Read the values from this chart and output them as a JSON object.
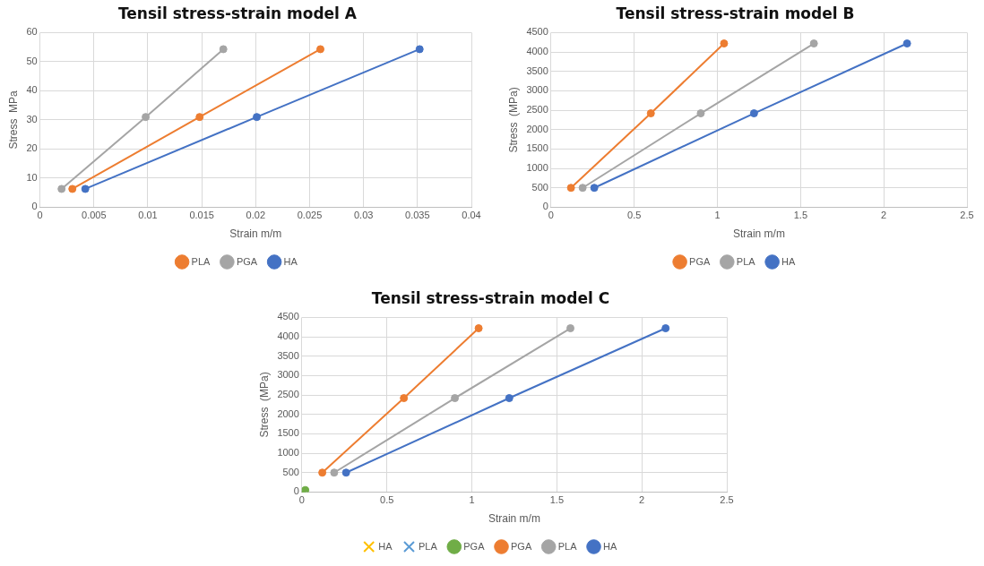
{
  "chart_data": [
    {
      "type": "line",
      "title": "Tensil stress-strain model A",
      "xlabel": "Strain m/m",
      "ylabel": "Stress  MPa",
      "xlim": [
        0,
        0.04
      ],
      "xticks": [
        0,
        0.005,
        0.01,
        0.015,
        0.02,
        0.025,
        0.03,
        0.035,
        0.04
      ],
      "ylim": [
        0,
        60
      ],
      "yticks": [
        0,
        10,
        20,
        30,
        40,
        50,
        60
      ],
      "grid": true,
      "legend": "bottom",
      "marker": "circle",
      "series": [
        {
          "name": "PLA",
          "color": "#ed7d31",
          "x": [
            0.003,
            0.0148,
            0.026
          ],
          "values": [
            6.3,
            31,
            54.3
          ]
        },
        {
          "name": "PGA",
          "color": "#a5a5a5",
          "x": [
            0.002,
            0.0098,
            0.017
          ],
          "values": [
            6.3,
            31,
            54.3
          ]
        },
        {
          "name": "HA",
          "color": "#4472c4",
          "x": [
            0.0042,
            0.0201,
            0.0352
          ],
          "values": [
            6.3,
            31,
            54.3
          ]
        }
      ]
    },
    {
      "type": "line",
      "title": "Tensil stress-strain model B",
      "xlabel": "Strain m/m",
      "ylabel": "Stress  (MPa)",
      "xlim": [
        0,
        2.5
      ],
      "xticks": [
        0,
        0.5,
        1,
        1.5,
        2,
        2.5
      ],
      "ylim": [
        0,
        4500
      ],
      "yticks": [
        0,
        500,
        1000,
        1500,
        2000,
        2500,
        3000,
        3500,
        4000,
        4500
      ],
      "grid": true,
      "legend": "bottom",
      "marker": "circle",
      "series": [
        {
          "name": "PGA",
          "color": "#ed7d31",
          "x": [
            0.12,
            0.6,
            1.04
          ],
          "values": [
            500,
            2420,
            4220
          ]
        },
        {
          "name": "PLA",
          "color": "#a5a5a5",
          "x": [
            0.19,
            0.9,
            1.58
          ],
          "values": [
            500,
            2420,
            4220
          ]
        },
        {
          "name": "HA",
          "color": "#4472c4",
          "x": [
            0.26,
            1.22,
            2.14
          ],
          "values": [
            500,
            2420,
            4220
          ]
        }
      ]
    },
    {
      "type": "line",
      "title": "Tensil stress-strain model C",
      "xlabel": "Strain m/m",
      "ylabel": "Stress  (MPa)",
      "xlim": [
        0,
        2.5
      ],
      "xticks": [
        0,
        0.5,
        1,
        1.5,
        2,
        2.5
      ],
      "ylim": [
        0,
        4500
      ],
      "yticks": [
        0,
        500,
        1000,
        1500,
        2000,
        2500,
        3000,
        3500,
        4000,
        4500
      ],
      "grid": true,
      "legend": "bottom",
      "marker": "circle",
      "series": [
        {
          "name": "HA",
          "color": "#ffc000",
          "marker": "cross"
        },
        {
          "name": "PLA",
          "color": "#5b9bd5",
          "marker": "cross"
        },
        {
          "name": "PGA",
          "color": "#70ad47",
          "x": [
            0,
            0.02
          ],
          "values": [
            0,
            50
          ]
        },
        {
          "name": "PGA",
          "color": "#ed7d31",
          "x": [
            0.12,
            0.6,
            1.04
          ],
          "values": [
            500,
            2420,
            4220
          ]
        },
        {
          "name": "PLA",
          "color": "#a5a5a5",
          "x": [
            0.19,
            0.9,
            1.58
          ],
          "values": [
            500,
            2420,
            4220
          ]
        },
        {
          "name": "HA",
          "color": "#4472c4",
          "x": [
            0.26,
            1.22,
            2.14
          ],
          "values": [
            500,
            2420,
            4220
          ]
        }
      ]
    }
  ]
}
